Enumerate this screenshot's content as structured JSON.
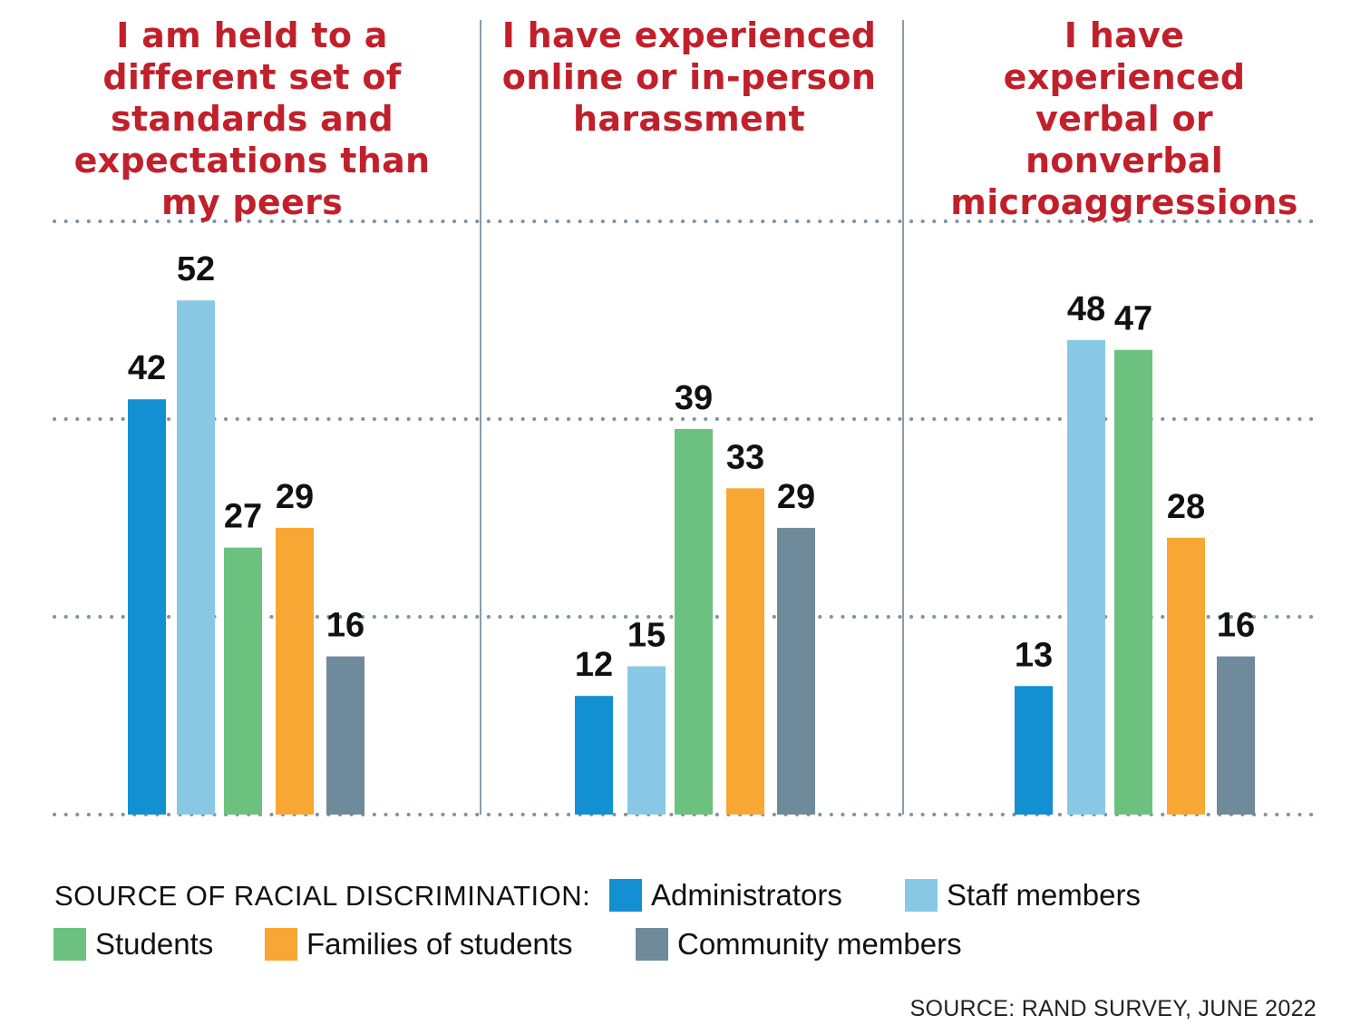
{
  "chart_data": {
    "type": "bar",
    "categories": [
      "I am held to a different set of standards and expectations than my peers",
      "I have experienced online or in-person harassment",
      "I have experienced verbal or nonverbal microaggressions"
    ],
    "series": [
      {
        "name": "Administrators",
        "color": "#1390d1",
        "values": [
          42,
          12,
          13
        ]
      },
      {
        "name": "Staff members",
        "color": "#88c8e4",
        "values": [
          52,
          15,
          48
        ]
      },
      {
        "name": "Students",
        "color": "#6cc17e",
        "values": [
          27,
          39,
          47
        ]
      },
      {
        "name": "Families of students",
        "color": "#f8a735",
        "values": [
          29,
          33,
          28
        ]
      },
      {
        "name": "Community members",
        "color": "#6f8a9a",
        "values": [
          16,
          29,
          16
        ]
      }
    ],
    "ylim": [
      0,
      60
    ],
    "gridlines": [
      0,
      20,
      40,
      60
    ],
    "grid": true,
    "legend_title": "SOURCE OF RACIAL DISCRIMINATION:",
    "legend_position": "bottom",
    "source": "SOURCE: RAND SURVEY, JUNE 2022",
    "title_color": "#c1202b"
  },
  "panels": [
    {
      "title": "I am held to a different set of standards and expectations than my peers"
    },
    {
      "title": "I have experienced online or in-person harassment"
    },
    {
      "title": "I have experienced verbal or nonverbal microaggressions"
    }
  ]
}
